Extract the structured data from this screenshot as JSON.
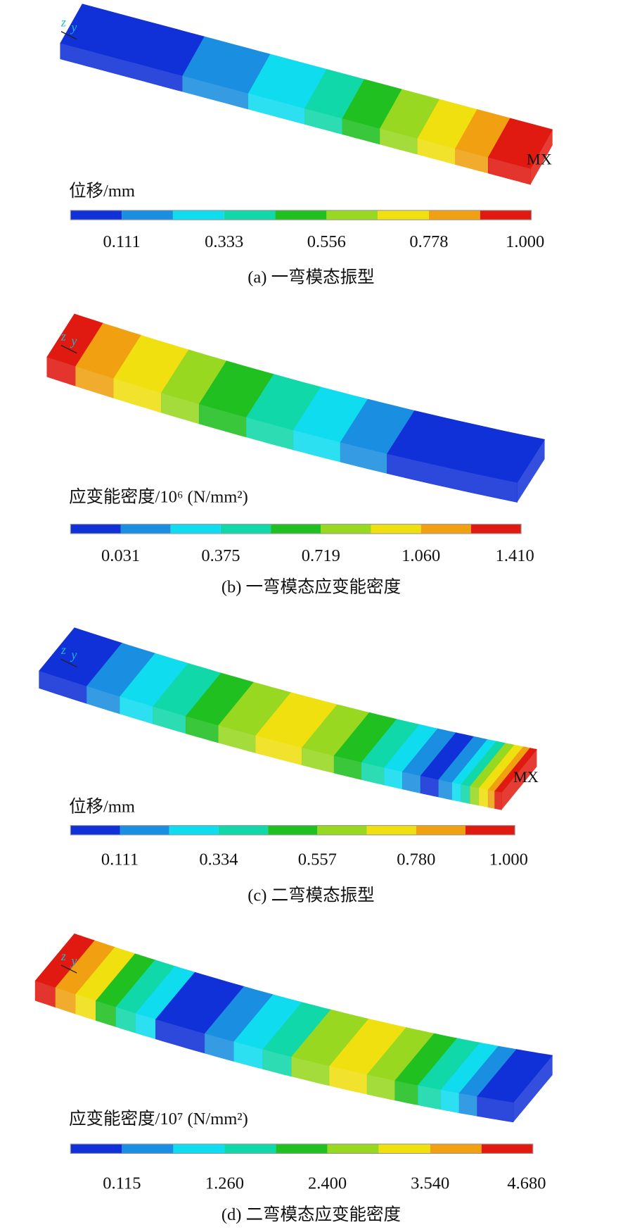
{
  "panels": [
    {
      "legend_title": "位移/mm",
      "ticks": [
        "0.111",
        "0.333",
        "0.556",
        "0.778",
        "1.000"
      ],
      "caption": "(a) 一弯模态振型",
      "triad": [
        "z",
        "y"
      ],
      "max_label": "MX"
    },
    {
      "legend_title": "应变能密度/10⁶ (N/mm²)",
      "ticks": [
        "0.031",
        "0.375",
        "0.719",
        "1.060",
        "1.410"
      ],
      "caption": "(b) 一弯模态应变能密度",
      "triad": [
        "z",
        "y"
      ]
    },
    {
      "legend_title": "位移/mm",
      "ticks": [
        "0.111",
        "0.334",
        "0.557",
        "0.780",
        "1.000"
      ],
      "caption": "(c) 二弯模态振型",
      "triad": [
        "z",
        "y"
      ],
      "max_label": "MX"
    },
    {
      "legend_title": "应变能密度/10⁷ (N/mm²)",
      "ticks": [
        "0.115",
        "1.260",
        "2.400",
        "3.540",
        "4.680"
      ],
      "caption": "(d) 二弯模态应变能密度",
      "triad": [
        "z",
        "y"
      ]
    }
  ]
}
